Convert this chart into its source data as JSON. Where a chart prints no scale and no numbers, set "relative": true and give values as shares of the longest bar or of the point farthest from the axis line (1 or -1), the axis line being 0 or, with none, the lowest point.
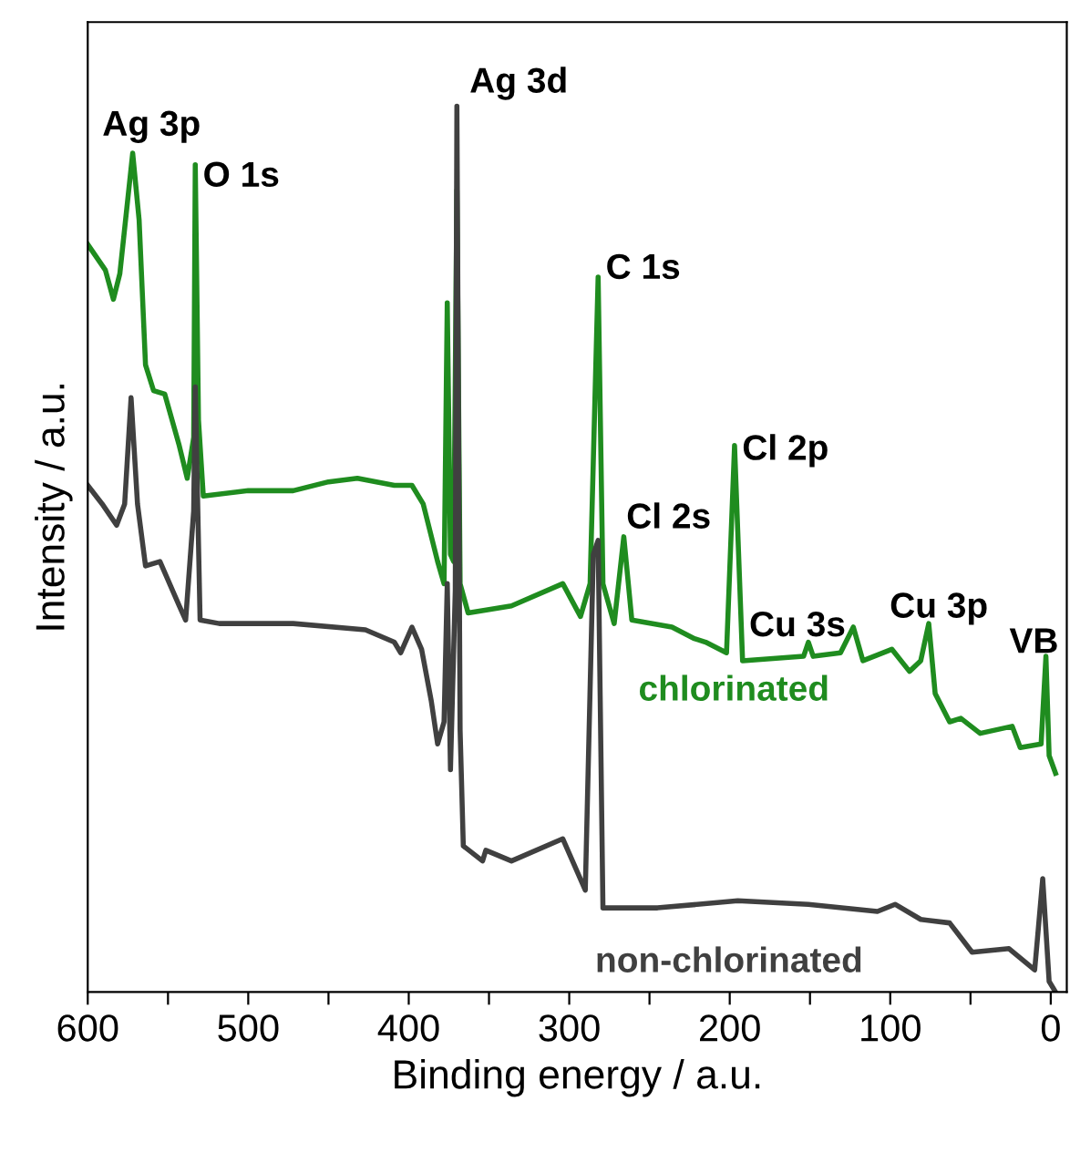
{
  "chart_data": {
    "type": "line",
    "relative": true,
    "xlabel": "Binding energy / a.u.",
    "ylabel": "Intensity / a.u.",
    "xlim": [
      600,
      -10
    ],
    "xticks": [
      600,
      {
        "value": 550,
        "label": null
      },
      500,
      {
        "value": 450,
        "label": null
      },
      400,
      {
        "value": 350,
        "label": null
      },
      300,
      {
        "value": 250,
        "label": null
      },
      200,
      {
        "value": 150,
        "label": null
      },
      100,
      {
        "value": 50,
        "label": null
      },
      0
    ],
    "grid": false,
    "legend": false,
    "marker": "none",
    "line_style": "solid",
    "series": [
      {
        "name": "chlorinated",
        "color": "#1f8c1f",
        "x": [
          600,
          589,
          584,
          580,
          572,
          568,
          564,
          559,
          552,
          543,
          538,
          534,
          533,
          531,
          528,
          500,
          472,
          450,
          432,
          409,
          398,
          391,
          382,
          378,
          376,
          374,
          372,
          370,
          368,
          363,
          336,
          304,
          293,
          287,
          282,
          279,
          272,
          266,
          261,
          236,
          222,
          215,
          202,
          197,
          192,
          154,
          151,
          148,
          131,
          123,
          117,
          99,
          88,
          81,
          76,
          72,
          63,
          56,
          44,
          24,
          19,
          6,
          3,
          1,
          -3
        ],
        "values": [
          0.844,
          0.815,
          0.782,
          0.811,
          0.947,
          0.872,
          0.708,
          0.679,
          0.675,
          0.617,
          0.58,
          0.626,
          0.934,
          0.646,
          0.56,
          0.566,
          0.566,
          0.576,
          0.58,
          0.572,
          0.572,
          0.551,
          0.486,
          0.461,
          0.778,
          0.494,
          0.486,
          0.905,
          0.461,
          0.428,
          0.436,
          0.461,
          0.424,
          0.461,
          0.807,
          0.461,
          0.416,
          0.514,
          0.42,
          0.412,
          0.399,
          0.395,
          0.383,
          0.617,
          0.374,
          0.379,
          0.395,
          0.379,
          0.383,
          0.412,
          0.374,
          0.387,
          0.362,
          0.374,
          0.416,
          0.337,
          0.305,
          0.309,
          0.292,
          0.3,
          0.276,
          0.28,
          0.379,
          0.267,
          0.247
        ]
      },
      {
        "name": "non-chlorinated",
        "color": "#404040",
        "x": [
          600,
          591,
          582,
          577,
          573,
          569,
          564,
          555,
          543,
          539,
          534,
          533,
          530,
          518,
          472,
          427,
          409,
          405,
          398,
          392,
          386,
          382,
          378,
          376,
          374,
          371,
          370,
          368,
          366,
          354,
          352,
          336,
          304,
          290,
          285,
          282,
          279,
          245,
          195,
          151,
          108,
          97,
          81,
          63,
          49,
          26,
          10,
          5,
          1,
          -3
        ],
        "values": [
          0.572,
          0.551,
          0.527,
          0.551,
          0.671,
          0.551,
          0.481,
          0.486,
          0.436,
          0.42,
          0.543,
          0.683,
          0.42,
          0.416,
          0.416,
          0.409,
          0.395,
          0.383,
          0.412,
          0.387,
          0.329,
          0.28,
          0.305,
          0.461,
          0.251,
          0.453,
          1.0,
          0.296,
          0.165,
          0.148,
          0.16,
          0.148,
          0.173,
          0.115,
          0.494,
          0.51,
          0.095,
          0.095,
          0.103,
          0.099,
          0.091,
          0.099,
          0.082,
          0.078,
          0.045,
          0.049,
          0.025,
          0.128,
          0.012,
          0.0
        ]
      }
    ],
    "annotations": [
      {
        "text": "Ag 3p",
        "x": 572,
        "y": 0.947
      },
      {
        "text": "O 1s",
        "x": 533,
        "y": 0.934
      },
      {
        "text": "Ag 3d",
        "x": 370,
        "y": 1.0
      },
      {
        "text": "C 1s",
        "x": 282,
        "y": 0.807
      },
      {
        "text": "Cl 2s",
        "x": 266,
        "y": 0.514
      },
      {
        "text": "Cl 2p",
        "x": 197,
        "y": 0.617
      },
      {
        "text": "Cu 3s",
        "x": 123,
        "y": 0.412
      },
      {
        "text": "Cu 3p",
        "x": 76,
        "y": 0.416
      },
      {
        "text": "VB",
        "x": 3,
        "y": 0.379
      }
    ]
  }
}
